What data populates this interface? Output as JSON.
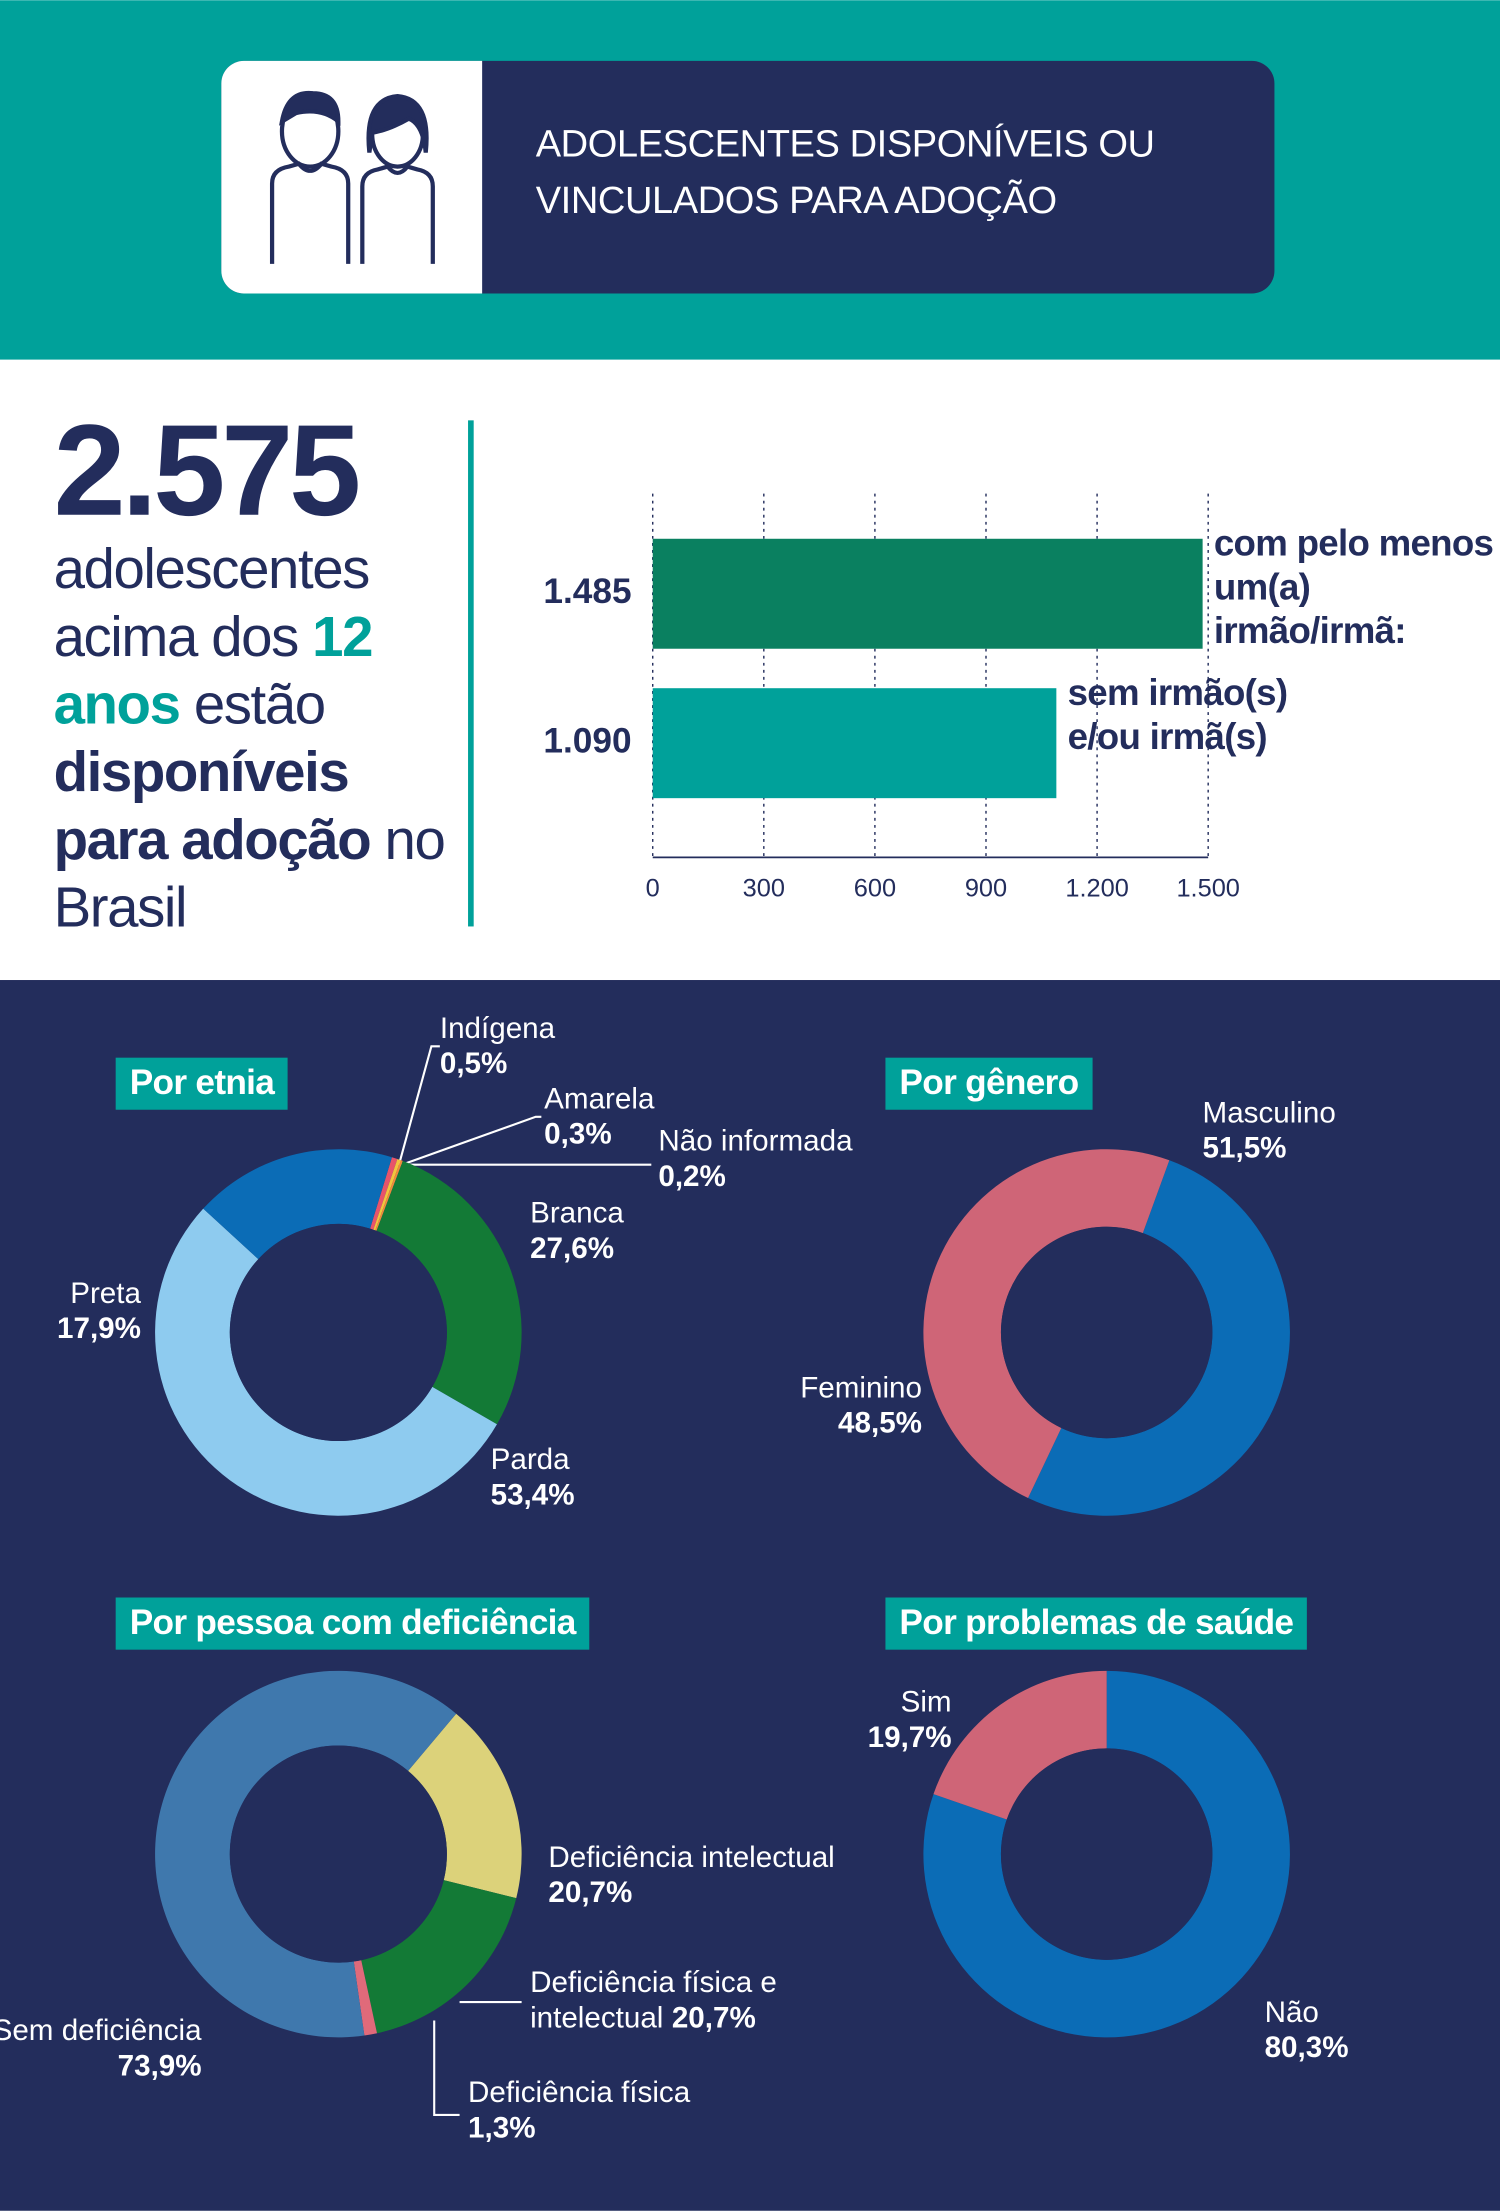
{
  "header": {
    "title": "ADOLESCENTES DISPONÍVEIS OU VINCULADOS PARA ADOÇÃO"
  },
  "summary": {
    "total": "2.575",
    "line1": "adolescentes acima dos",
    "age": "12 anos",
    "line2": "estão",
    "highlight": "disponíveis para adoção",
    "line3": "no Brasil"
  },
  "chart_data": [
    {
      "type": "bar",
      "orientation": "horizontal",
      "categories": [
        "com pelo menos um(a) irmão/irmã:",
        "sem irmão(s) e/ou irmã(s)"
      ],
      "values": [
        1485,
        1090
      ],
      "value_labels": [
        "1.485",
        "1.090"
      ],
      "colors": [
        "#0a8060",
        "#00a19a"
      ],
      "xlim": [
        0,
        1500
      ],
      "xticks": [
        0,
        300,
        600,
        900,
        {
          "value": 1200,
          "label": "1.200"
        },
        {
          "value": 1500,
          "label": "1.500"
        }
      ],
      "grid": true
    },
    {
      "type": "pie",
      "title": "Por etnia",
      "categories": [
        "Indígena",
        "Amarela",
        "Não informada",
        "Branca",
        "Parda",
        "Preta"
      ],
      "values": [
        0.5,
        0.3,
        0.2,
        27.6,
        53.4,
        17.9
      ],
      "value_labels": [
        "0,5%",
        "0,3%",
        "0,2%",
        "27,6%",
        "53,4%",
        "17,9%"
      ],
      "colors": [
        "#e8546a",
        "#f2c53d",
        "#f08a3c",
        "#137a36",
        "#8ecbef",
        "#0b6cb6"
      ]
    },
    {
      "type": "pie",
      "title": "Por gênero",
      "categories": [
        "Masculino",
        "Feminino"
      ],
      "values": [
        51.5,
        48.5
      ],
      "value_labels": [
        "51,5%",
        "48,5%"
      ],
      "colors": [
        "#0b6cb6",
        "#cf6577"
      ]
    },
    {
      "type": "pie",
      "title": "Por pessoa com deficiência",
      "categories": [
        "Deficiência intelectual",
        "Deficiência física e intelectual",
        "Deficiência física",
        "Sem deficiência"
      ],
      "values": [
        20.7,
        20.7,
        1.3,
        73.9
      ],
      "value_labels": [
        "20,7%",
        "20,7%",
        "1,3%",
        "73,9%"
      ],
      "colors": [
        "#dcd27a",
        "#137a36",
        "#e06a7a",
        "#3f78ad"
      ]
    },
    {
      "type": "pie",
      "title": "Por problemas de saúde",
      "categories": [
        "Não",
        "Sim"
      ],
      "values": [
        80.3,
        19.7
      ],
      "value_labels": [
        "80,3%",
        "19,7%"
      ],
      "colors": [
        "#0b6cb6",
        "#cf6577"
      ]
    }
  ]
}
